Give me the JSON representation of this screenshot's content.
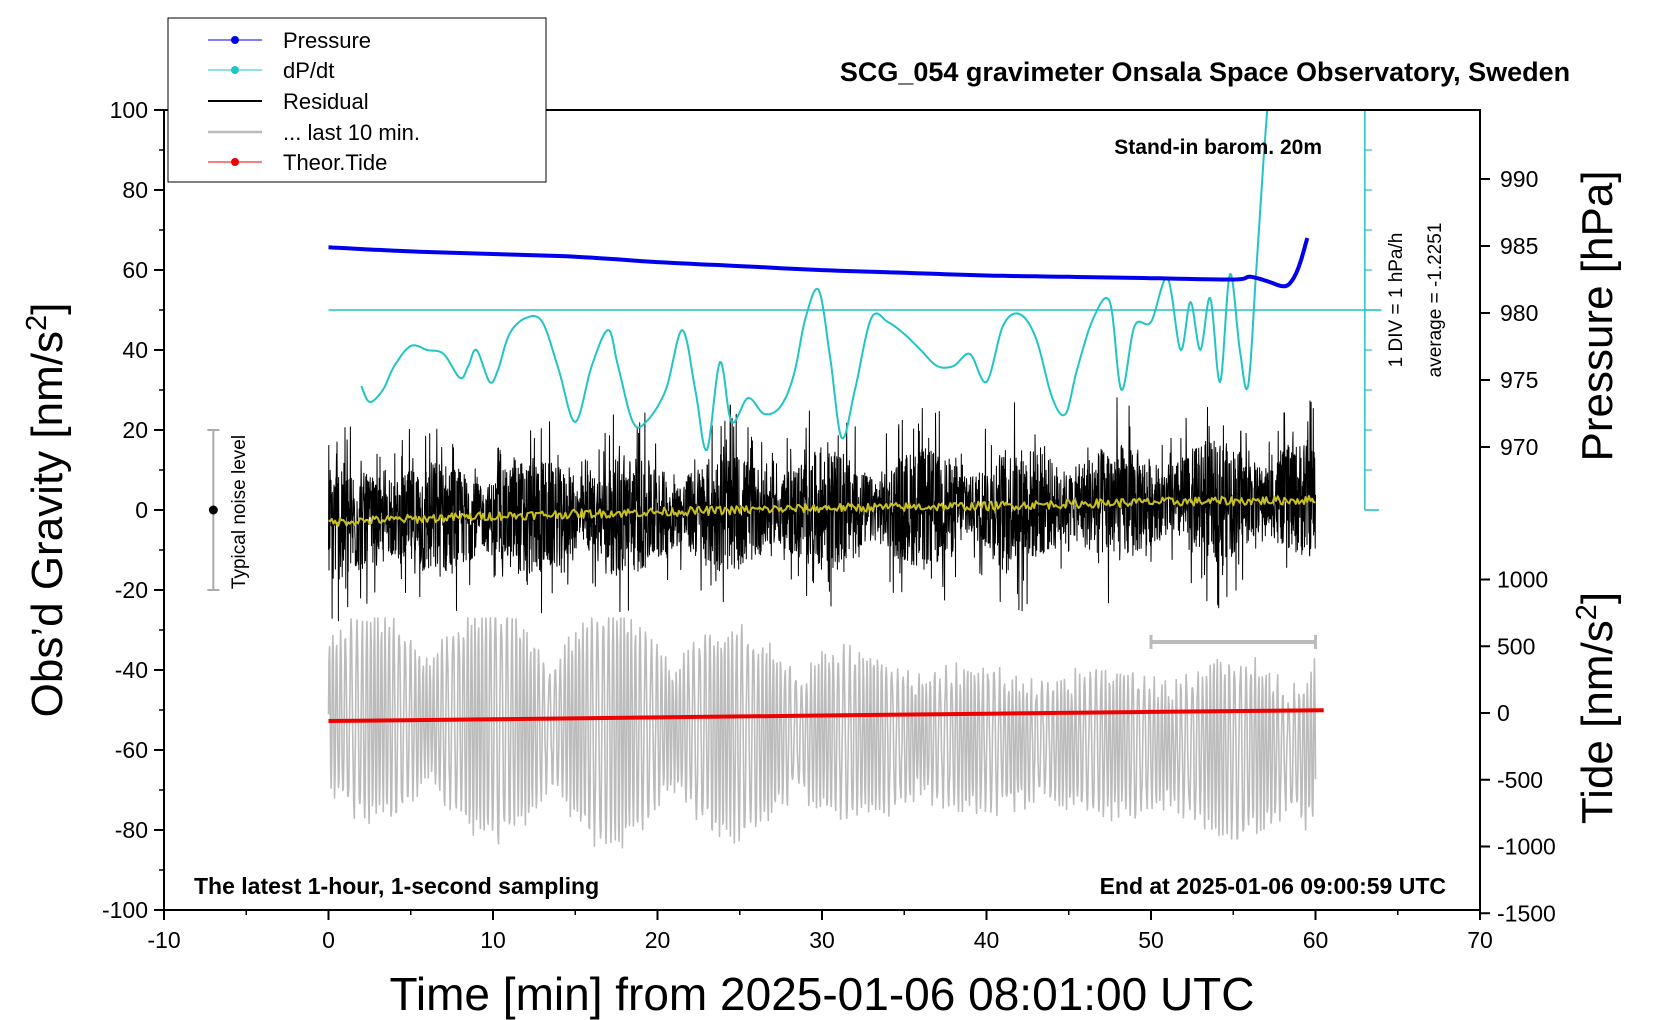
{
  "chart_data": {
    "type": "line",
    "title": "SCG_054 gravimeter Onsala Space Observatory, Sweden",
    "subtitle": "Stand-in barom. 20m",
    "xlabel": "Time [min] from 2025-01-06 08:01:00 UTC",
    "ylabel_left": "Obs’d Gravity [nm/s²]",
    "ylabel_left_parts": {
      "main": "Obs’d Gravity [nm/s",
      "sup": "2",
      "close": "]"
    },
    "ylabel_right_top": "Pressure [hPa]",
    "ylabel_right_bottom_parts": {
      "main": "Tide [nm/s",
      "sup": "2",
      "close": "]"
    },
    "xlim": [
      -10,
      70
    ],
    "ylim_left": [
      -100,
      100
    ],
    "pressure_axis_range": [
      965,
      995
    ],
    "tide_axis_range": [
      -1500,
      1000
    ],
    "x_ticks": [
      "-10",
      "0",
      "10",
      "20",
      "30",
      "40",
      "50",
      "60",
      "70"
    ],
    "y_ticks_left": [
      "100",
      "80",
      "60",
      "40",
      "20",
      "0",
      "-20",
      "-40",
      "-60",
      "-80",
      "-100"
    ],
    "pressure_ticks": [
      "990",
      "985",
      "980",
      "975",
      "970"
    ],
    "tide_ticks": [
      "1000",
      "500",
      "0",
      "-500",
      "-1000",
      "-1500"
    ],
    "legend": {
      "position": "top-left",
      "entries": [
        {
          "label": "Pressure",
          "color": "#0000ee",
          "marker": true
        },
        {
          "label": "dP/dt",
          "color": "#22c4c4",
          "marker": true
        },
        {
          "label": "Residual",
          "color": "#000000",
          "marker": false
        },
        {
          "label": "... last 10 min.",
          "color": "#bbbbbb",
          "marker": false
        },
        {
          "label": "Theor.Tide",
          "color": "#ee0000",
          "marker": true
        }
      ]
    },
    "annotations": {
      "dpdt_scale": "1 DIV = 1 hPa/h",
      "dpdt_average": "average = -1.2251",
      "noise_label": "Typical noise level",
      "bottom_left": "The latest 1-hour, 1-second sampling",
      "bottom_right": "End at 2025-01-06 09:00:59 UTC"
    },
    "noise_bar": {
      "x": -7,
      "center": 0,
      "half_range": 20
    },
    "last10_bar": {
      "x_start": 50,
      "x_end": 60,
      "y": -33
    },
    "series": [
      {
        "name": "Pressure",
        "axis": "pressure",
        "color": "#0000ee",
        "x": [
          0,
          5,
          10,
          15,
          20,
          25,
          30,
          35,
          40,
          45,
          50,
          55,
          56,
          57,
          58,
          58.5,
          59,
          59.5
        ],
        "values": [
          984.9,
          984.6,
          984.4,
          984.2,
          983.8,
          983.5,
          983.2,
          983.0,
          982.8,
          982.7,
          982.6,
          982.5,
          982.7,
          982.4,
          982.0,
          982.3,
          983.5,
          985.6
        ]
      },
      {
        "name": "dP/dt",
        "axis": "left",
        "color": "#22c4c4",
        "reference_y": 50,
        "x": [
          2,
          2.5,
          3.3,
          4,
          5,
          6,
          7,
          8,
          8.5,
          9,
          9.8,
          10.3,
          11,
          12,
          13,
          14,
          15,
          16,
          17,
          17.6,
          18.5,
          19.3,
          20.5,
          21.5,
          22.3,
          23,
          23.8,
          24.5,
          25.5,
          26.5,
          27.5,
          28.3,
          29,
          29.8,
          30.5,
          31.2,
          32,
          33,
          34,
          35,
          36,
          37,
          38,
          39,
          40,
          41,
          42,
          43,
          44,
          44.8,
          45.5,
          46.5,
          47.5,
          48.2,
          49,
          50,
          51,
          51.8,
          52.4,
          53,
          53.6,
          54.2,
          54.8,
          55.4,
          55.9,
          56.4,
          56.8,
          57.1
        ],
        "values": [
          31,
          27,
          30,
          36,
          41,
          40,
          39,
          33,
          36,
          40,
          32,
          35,
          44,
          48,
          47,
          35,
          22,
          36,
          45,
          36,
          22,
          22,
          30,
          45,
          30,
          15,
          37,
          22,
          28,
          24,
          26,
          34,
          48,
          55,
          38,
          18,
          30,
          48,
          47,
          44,
          40,
          36,
          36,
          39,
          32,
          46,
          49,
          43,
          28,
          24,
          35,
          48,
          52,
          30,
          46,
          47,
          58,
          40,
          52,
          40,
          53,
          32,
          59,
          40,
          31,
          60,
          85,
          102
        ]
      },
      {
        "name": "Residual",
        "axis": "left",
        "color": "#000000",
        "x": [
          0,
          60
        ],
        "values": [
          -3,
          3
        ],
        "spread": 27
      },
      {
        "name": "Running mean",
        "axis": "left",
        "color": "#c8c020",
        "x": [
          0,
          10,
          20,
          30,
          40,
          50,
          60
        ],
        "values": [
          -3,
          -1.5,
          -0.5,
          0.5,
          1,
          2,
          2.5
        ]
      },
      {
        "name": "... last 10 min.",
        "axis": "left",
        "color": "#bbbbbb",
        "x": [
          0,
          60
        ],
        "values": [
          -52,
          -60
        ],
        "spread": 29
      },
      {
        "name": "Theor.Tide",
        "axis": "tide",
        "color": "#ee0000",
        "x": [
          0,
          10,
          20,
          30,
          40,
          50,
          60.5
        ],
        "values": [
          -60,
          -47,
          -33,
          -19,
          -5,
          8,
          21
        ]
      }
    ]
  }
}
